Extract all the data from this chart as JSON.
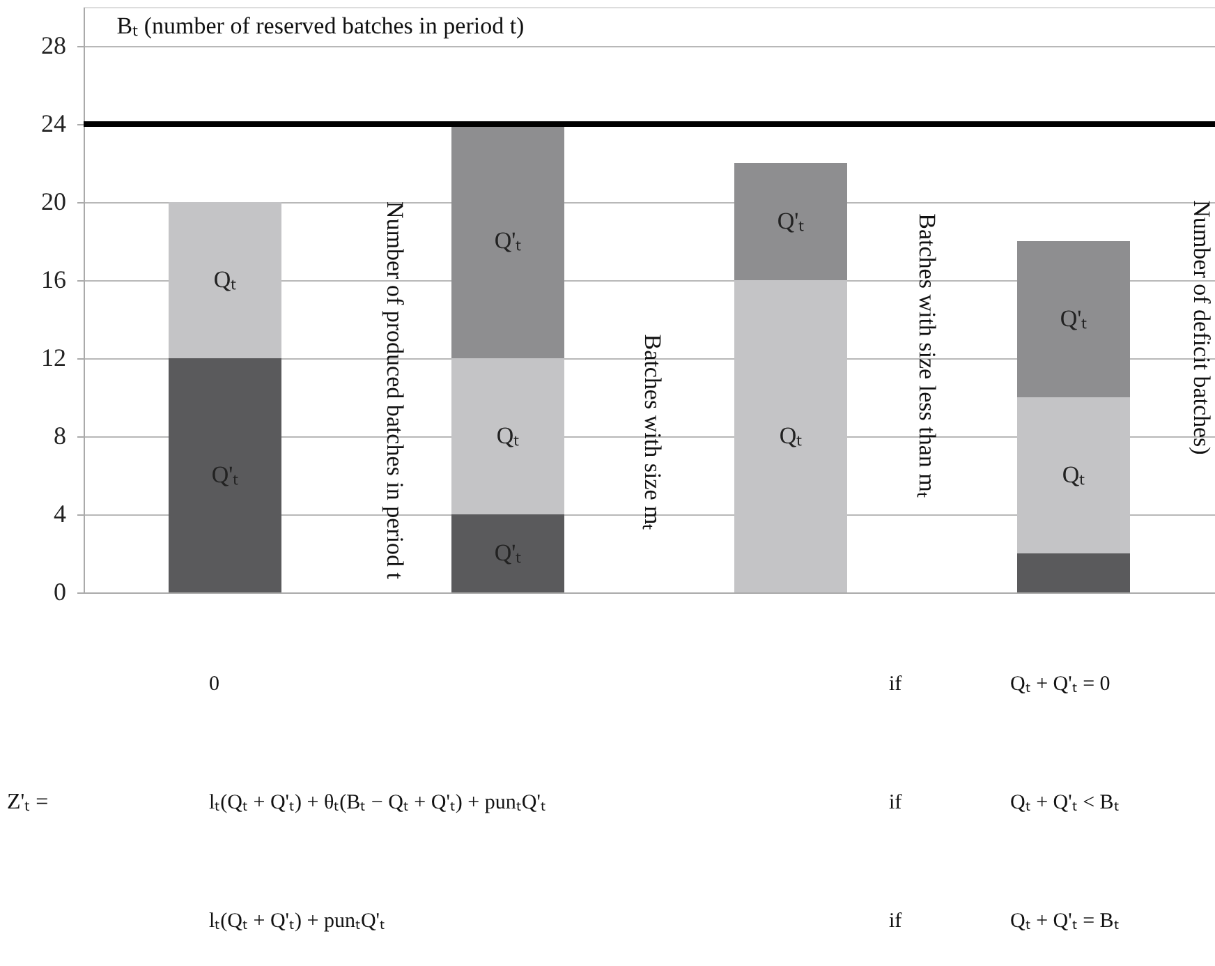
{
  "chart_data": {
    "type": "bar",
    "stacked": true,
    "categories": [
      null,
      null,
      null,
      null
    ],
    "series": [
      {
        "color": "#5a5a5c",
        "values": [
          12,
          4,
          0,
          2
        ],
        "value_labels": [
          "Q'ₜ",
          "Q'ₜ",
          null,
          null
        ]
      },
      {
        "color": "#c4c4c6",
        "values": [
          8,
          8,
          16,
          8
        ],
        "value_labels": [
          "Qₜ",
          "Qₜ",
          "Qₜ",
          "Qₜ"
        ]
      },
      {
        "color": "#8e8e90",
        "values": [
          0,
          12,
          6,
          8
        ],
        "value_labels": [
          null,
          "Q'ₜ",
          "Q'ₜ",
          "Q'ₜ"
        ]
      }
    ],
    "ylim": [
      0,
      30
    ],
    "yticks": [
      0,
      4,
      8,
      12,
      16,
      20,
      24,
      28
    ],
    "grid": "y",
    "tick_labels": "y",
    "ref_lines": [
      {
        "axis": "y",
        "value": 24,
        "label": "Bₜ (number of reserved batches in period t)",
        "color": "#000000"
      }
    ],
    "annotations": [
      "Number of produced batches in period t",
      "Batches with size mₜ",
      "Batches with size less than mₜ",
      "Number of deficit batches)",
      "Z'ₜ =",
      "0",
      "if",
      "Qₜ + Q'ₜ = 0",
      "lₜ(Qₜ + Q'ₜ) + θₜ(Bₜ − Qₜ + Q'ₜ) + punₜQ'ₜ",
      "if",
      "Qₜ + Q'ₜ < Bₜ",
      "lₜ(Qₜ + Q'ₜ) + punₜQ'ₜ",
      "if",
      "Qₜ + Q'ₜ = Bₜ"
    ]
  }
}
